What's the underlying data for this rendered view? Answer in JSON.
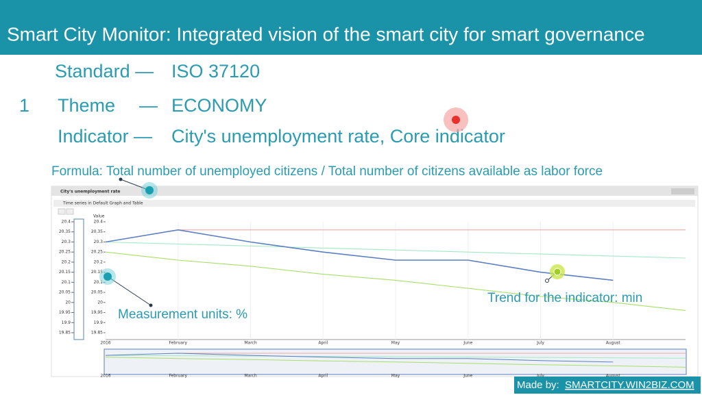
{
  "slide": {
    "title": "Smart City Monitor: Integrated vision of the smart city for smart governance",
    "number": "1",
    "standard_label": "Standard —",
    "standard_value": "ISO 37120",
    "theme_label": "Theme",
    "theme_dash": "—",
    "theme_value": "ECONOMY",
    "indicator_label": "Indicator —",
    "indicator_value": "City's unemployment rate, Core indicator",
    "formula": "Formula: Total number of unemployed citizens / Total number of citizens available as labor force",
    "widget_title": "City's unemployment rate",
    "widget_subtitle": "Time series in Default Graph and Table",
    "units_note": "Measurement units: %",
    "trend_note": "Trend for the indicator: min",
    "made_by": "Made by:",
    "made_by_link": "SMARTCITY.WIN2BIZ.COM"
  },
  "chart_data": {
    "type": "line",
    "y_label": "Value",
    "categories": [
      "2016",
      "February",
      "March",
      "April",
      "May",
      "June",
      "July",
      "August",
      null
    ],
    "series": [
      {
        "color": "#5b7fc0",
        "values": [
          20.3,
          20.36,
          20.3,
          20.25,
          20.21,
          20.21,
          20.15,
          20.11,
          null
        ]
      },
      {
        "color": "#f4a6a6",
        "values": [
          null,
          20.36,
          20.36,
          20.36,
          20.36,
          20.36,
          20.36,
          20.36,
          20.36
        ]
      },
      {
        "color": "#a3e8c4",
        "values": [
          20.3,
          20.29,
          20.28,
          20.27,
          20.26,
          20.25,
          20.24,
          20.23,
          20.22
        ]
      },
      {
        "color": "#a8de6c",
        "values": [
          20.25,
          20.21,
          20.18,
          20.14,
          20.11,
          20.07,
          20.03,
          20.0,
          19.96
        ]
      }
    ],
    "ylim": [
      19.85,
      20.4
    ],
    "yticks": [
      19.85,
      19.9,
      19.95,
      20,
      20.05,
      20.1,
      20.15,
      20.2,
      20.25,
      20.3,
      20.35,
      20.4
    ]
  }
}
